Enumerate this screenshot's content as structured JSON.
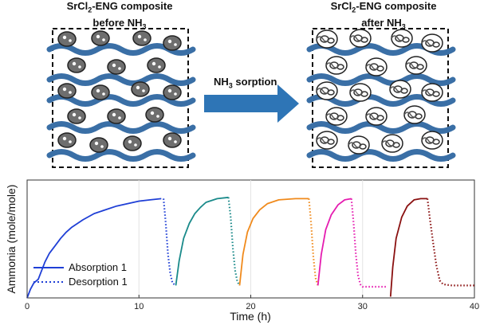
{
  "illustration": {
    "before": {
      "line1": "SrCl",
      "sub1": "2",
      "line1b": "-ENG composite",
      "line2": "before NH",
      "sub2": "3"
    },
    "after": {
      "line1": "SrCl",
      "sub1": "2",
      "line1b": "-ENG composite",
      "line2": "after NH",
      "sub2": "3"
    },
    "arrow_label": {
      "text": "NH",
      "sub": "3",
      "text2": " sorption"
    },
    "colors": {
      "wave": "#3a6fa6",
      "particle": "#6e6e6e",
      "arrow": "#2e75b6"
    }
  },
  "chart_data": {
    "type": "line",
    "xlabel": "Time (h)",
    "ylabel": "Ammonia (mole/mole)",
    "xlim": [
      0,
      40
    ],
    "ylim": [
      0,
      9.5
    ],
    "xticks": [
      0,
      10,
      20,
      30,
      40
    ],
    "legend": {
      "placement": "bottom-left",
      "entries": [
        "Absorption 1",
        "Desorption 1"
      ]
    },
    "series": [
      {
        "name": "Absorption 1",
        "style": "solid",
        "color": "#1f3fd6",
        "x": [
          0,
          0.3,
          0.6,
          1.0,
          1.3,
          1.6,
          2.0,
          2.5,
          3,
          3.5,
          4,
          5,
          6,
          7,
          8,
          9,
          10,
          11,
          12
        ],
        "y": [
          0,
          0.7,
          1.2,
          1.5,
          2.2,
          2.9,
          3.6,
          4.2,
          4.8,
          5.3,
          5.7,
          6.3,
          6.8,
          7.1,
          7.4,
          7.6,
          7.8,
          7.9,
          8.0
        ]
      },
      {
        "name": "Desorption 1",
        "style": "dotted",
        "color": "#1f3fd6",
        "x": [
          12.2,
          12.4,
          12.6,
          12.8,
          13.0,
          13.3
        ],
        "y": [
          8.0,
          6.0,
          3.5,
          2.0,
          1.2,
          1.0
        ]
      },
      {
        "style": "solid",
        "color": "#1a8a8a",
        "x": [
          13.3,
          13.6,
          14,
          14.5,
          15,
          15.5,
          16,
          17,
          18
        ],
        "y": [
          1.0,
          3.0,
          4.8,
          6.0,
          6.8,
          7.3,
          7.7,
          8.0,
          8.1
        ]
      },
      {
        "style": "dotted",
        "color": "#1a8a8a",
        "x": [
          18,
          18.2,
          18.4,
          18.6,
          18.8,
          19.0
        ],
        "y": [
          8.1,
          6.5,
          4.0,
          2.2,
          1.3,
          1.0
        ]
      },
      {
        "style": "solid",
        "color": "#f08a1c",
        "x": [
          19.0,
          19.3,
          19.7,
          20.2,
          20.8,
          21.5,
          22.5,
          24,
          25.2
        ],
        "y": [
          1.0,
          3.5,
          5.3,
          6.4,
          7.1,
          7.6,
          7.9,
          8.0,
          8.0
        ]
      },
      {
        "style": "dotted",
        "color": "#f08a1c",
        "x": [
          25.2,
          25.4,
          25.6,
          25.8,
          26.0
        ],
        "y": [
          8.0,
          6.0,
          3.3,
          1.6,
          1.0
        ]
      },
      {
        "style": "solid",
        "color": "#e51cb0",
        "x": [
          26.0,
          26.3,
          26.7,
          27.2,
          27.8,
          28.4,
          29.0
        ],
        "y": [
          1.0,
          3.5,
          5.5,
          6.7,
          7.5,
          7.9,
          8.0
        ]
      },
      {
        "style": "dotted",
        "color": "#e51cb0",
        "x": [
          29.0,
          29.2,
          29.4,
          29.6,
          29.8,
          30.0,
          31.0,
          32.2
        ],
        "y": [
          8.0,
          6.0,
          3.5,
          1.8,
          1.1,
          0.9,
          0.9,
          0.9
        ]
      },
      {
        "style": "solid",
        "color": "#8a1010",
        "x": [
          32.5,
          32.7,
          33.0,
          33.5,
          34.0,
          34.6,
          35.2,
          35.8
        ],
        "y": [
          0.1,
          2.5,
          4.8,
          6.5,
          7.4,
          7.9,
          8.0,
          8.0
        ]
      },
      {
        "style": "dotted",
        "color": "#8a1010",
        "x": [
          35.8,
          36.0,
          36.3,
          36.6,
          36.9,
          37.2,
          38,
          40
        ],
        "y": [
          8.0,
          6.5,
          4.5,
          2.6,
          1.4,
          1.1,
          1.0,
          1.0
        ]
      }
    ]
  }
}
